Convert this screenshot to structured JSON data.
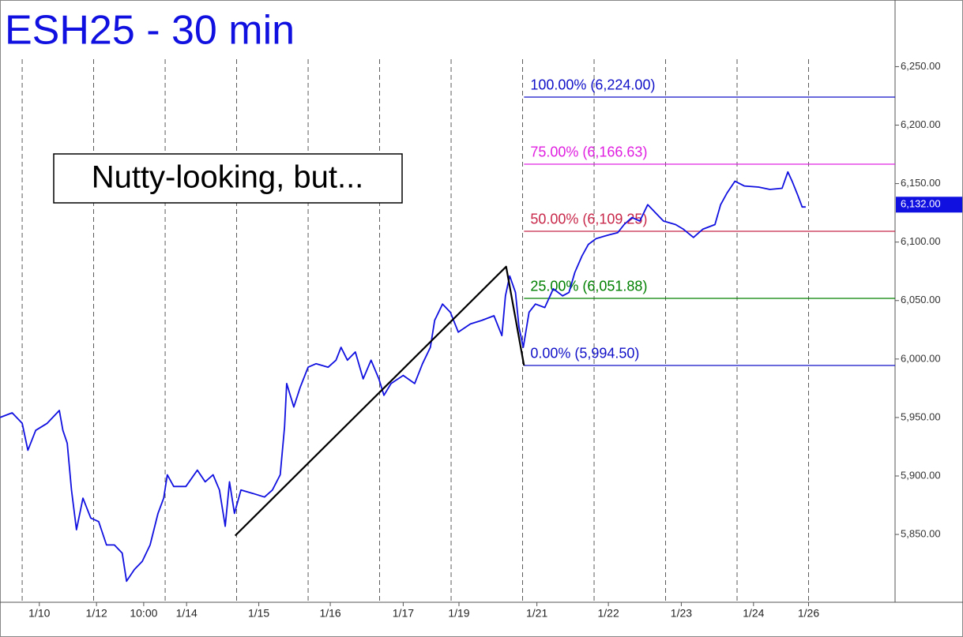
{
  "chart_data": {
    "type": "line",
    "title": "ESH25 - 30 min",
    "annotation": "Nutty-looking, but...",
    "xlim": [
      -0.31,
      12.21
    ],
    "ylim": [
      5792,
      6307
    ],
    "yticks": [
      {
        "value": 5850,
        "label": "5,850.00"
      },
      {
        "value": 5900,
        "label": "5,900.00"
      },
      {
        "value": 5950,
        "label": "5,950.00"
      },
      {
        "value": 6000,
        "label": "6,000.00"
      },
      {
        "value": 6050,
        "label": "6,050.00"
      },
      {
        "value": 6100,
        "label": "6,100.00"
      },
      {
        "value": 6150,
        "label": "6,150.00"
      },
      {
        "value": 6200,
        "label": "6,200.00"
      },
      {
        "value": 6250,
        "label": "6,250.00"
      }
    ],
    "xticks": [
      {
        "value": 0.24,
        "label": "1/10"
      },
      {
        "value": 1.04,
        "label": "1/12"
      },
      {
        "value": 1.7,
        "label": "10:00"
      },
      {
        "value": 2.3,
        "label": "1/14"
      },
      {
        "value": 3.31,
        "label": "1/15"
      },
      {
        "value": 4.31,
        "label": "1/16"
      },
      {
        "value": 5.33,
        "label": "1/17"
      },
      {
        "value": 6.11,
        "label": "1/19"
      },
      {
        "value": 7.2,
        "label": "1/21"
      },
      {
        "value": 8.2,
        "label": "1/22"
      },
      {
        "value": 9.22,
        "label": "1/23"
      },
      {
        "value": 10.23,
        "label": "1/24"
      },
      {
        "value": 11.0,
        "label": "1/26"
      }
    ],
    "session_lines": [
      0,
      1,
      2,
      3,
      4,
      5,
      6,
      7,
      8,
      9,
      10,
      11
    ],
    "series": [
      {
        "name": "ESH25",
        "color": "#1010e0",
        "x": [
          -0.31,
          -0.14,
          0.0,
          0.08,
          0.19,
          0.35,
          0.52,
          0.57,
          0.63,
          0.69,
          0.76,
          0.85,
          0.96,
          1.07,
          1.18,
          1.29,
          1.4,
          1.46,
          1.57,
          1.68,
          1.79,
          1.9,
          1.98,
          2.03,
          2.12,
          2.29,
          2.45,
          2.56,
          2.67,
          2.76,
          2.84,
          2.9,
          2.97,
          3.06,
          3.23,
          3.39,
          3.5,
          3.61,
          3.67,
          3.7,
          3.8,
          3.89,
          4.0,
          4.11,
          4.28,
          4.39,
          4.46,
          4.55,
          4.66,
          4.77,
          4.88,
          4.99,
          5.06,
          5.16,
          5.33,
          5.49,
          5.6,
          5.71,
          5.77,
          5.88,
          5.99,
          6.1,
          6.27,
          6.43,
          6.6,
          6.71,
          6.76,
          6.82,
          6.9,
          6.95,
          7.01,
          7.09,
          7.18,
          7.31,
          7.43,
          7.56,
          7.65,
          7.73,
          7.83,
          7.92,
          8.03,
          8.2,
          8.33,
          8.42,
          8.53,
          8.64,
          8.75,
          8.86,
          8.97,
          9.14,
          9.25,
          9.39,
          9.52,
          9.69,
          9.77,
          9.86,
          9.97,
          10.1,
          10.3,
          10.46,
          10.63,
          10.71,
          10.77,
          10.85,
          10.91,
          10.96
        ],
        "values": [
          5950,
          5954,
          5945,
          5922,
          5939,
          5945,
          5956,
          5939,
          5928,
          5888,
          5854,
          5881,
          5864,
          5861,
          5841,
          5841,
          5834,
          5810,
          5820,
          5827,
          5841,
          5868,
          5881,
          5901,
          5891,
          5891,
          5905,
          5895,
          5901,
          5888,
          5857,
          5895,
          5868,
          5888,
          5885,
          5882,
          5888,
          5901,
          5942,
          5979,
          5959,
          5976,
          5993,
          5996,
          5993,
          5999,
          6010,
          5999,
          6006,
          5983,
          5999,
          5983,
          5969,
          5979,
          5986,
          5979,
          5996,
          6010,
          6033,
          6047,
          6040,
          6023,
          6030,
          6033,
          6037,
          6020,
          6054,
          6071,
          6057,
          6027,
          6010,
          6040,
          6047,
          6044,
          6060,
          6054,
          6057,
          6074,
          6088,
          6098,
          6103,
          6106,
          6108,
          6115,
          6121,
          6118,
          6132,
          6125,
          6118,
          6115,
          6111,
          6104,
          6111,
          6115,
          6132,
          6142,
          6152,
          6148,
          6147,
          6145,
          6146,
          6160,
          6152,
          6140,
          6130,
          6130
        ]
      }
    ],
    "pattern": {
      "color": "#000000",
      "x": [
        2.98,
        6.77,
        7.02
      ],
      "values": [
        5849,
        6079,
        5994.5
      ]
    },
    "fib_start": 7.02,
    "fib_levels": [
      {
        "label": "100.00% (6,224.00)",
        "value": 6224,
        "color": "#1010c8"
      },
      {
        "label": "75.00% (6,166.63)",
        "value": 6166.63,
        "color": "#e020e0"
      },
      {
        "label": "50.00% (6,109.25)",
        "value": 6109.25,
        "color": "#c8284a"
      },
      {
        "label": "25.00% (6,051.88)",
        "value": 6051.88,
        "color": "#008000"
      },
      {
        "label": "0.00% (5,994.50)",
        "value": 5994.5,
        "color": "#1010c8"
      }
    ],
    "last_price": {
      "value": 6132,
      "label": "6,132.00",
      "color": "#1010e0"
    }
  }
}
